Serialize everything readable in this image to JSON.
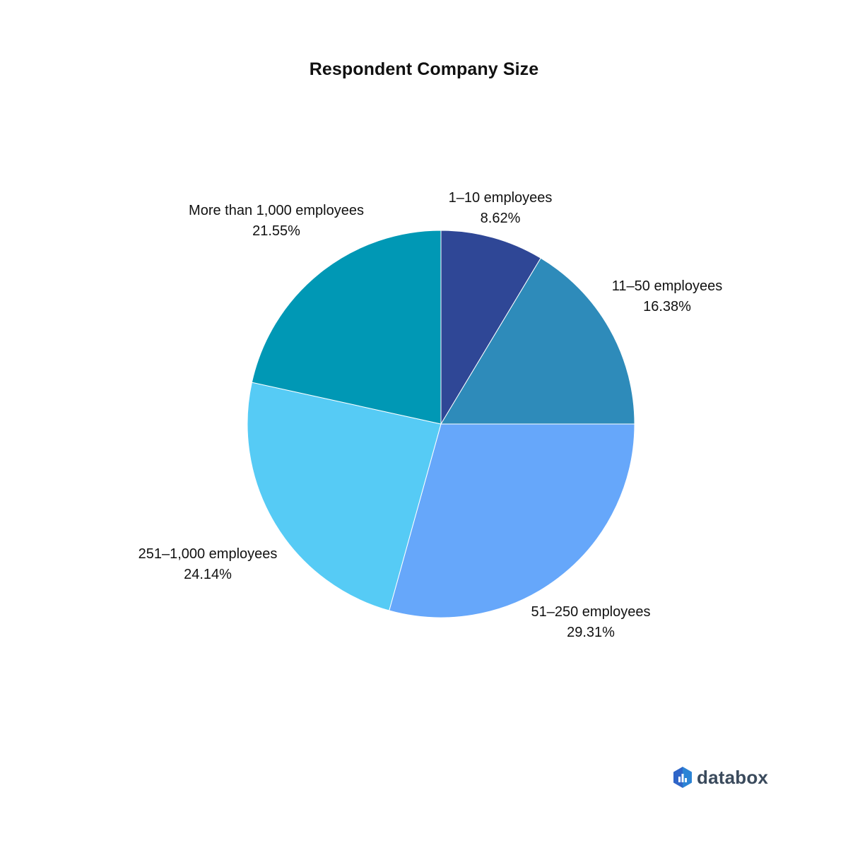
{
  "chart_data": {
    "type": "pie",
    "title": "Respondent Company Size",
    "start_angle_deg": 0,
    "direction": "clockwise",
    "slices": [
      {
        "label": "1–10 employees",
        "value": 8.62,
        "value_label": "8.62%",
        "color": "#2f4796"
      },
      {
        "label": "11–50 employees",
        "value": 16.38,
        "value_label": "16.38%",
        "color": "#2e8bba"
      },
      {
        "label": "51–250 employees",
        "value": 29.31,
        "value_label": "29.31%",
        "color": "#66a7fa"
      },
      {
        "label": "251–1,000 employees",
        "value": 24.14,
        "value_label": "24.14%",
        "color": "#56cbf5"
      },
      {
        "label": "More than 1,000 employees",
        "value": 21.55,
        "value_label": "21.55%",
        "color": "#0098b5"
      }
    ]
  },
  "brand": {
    "name": "databox",
    "icon": "databox-logo-icon",
    "color": "#2f65c8"
  }
}
